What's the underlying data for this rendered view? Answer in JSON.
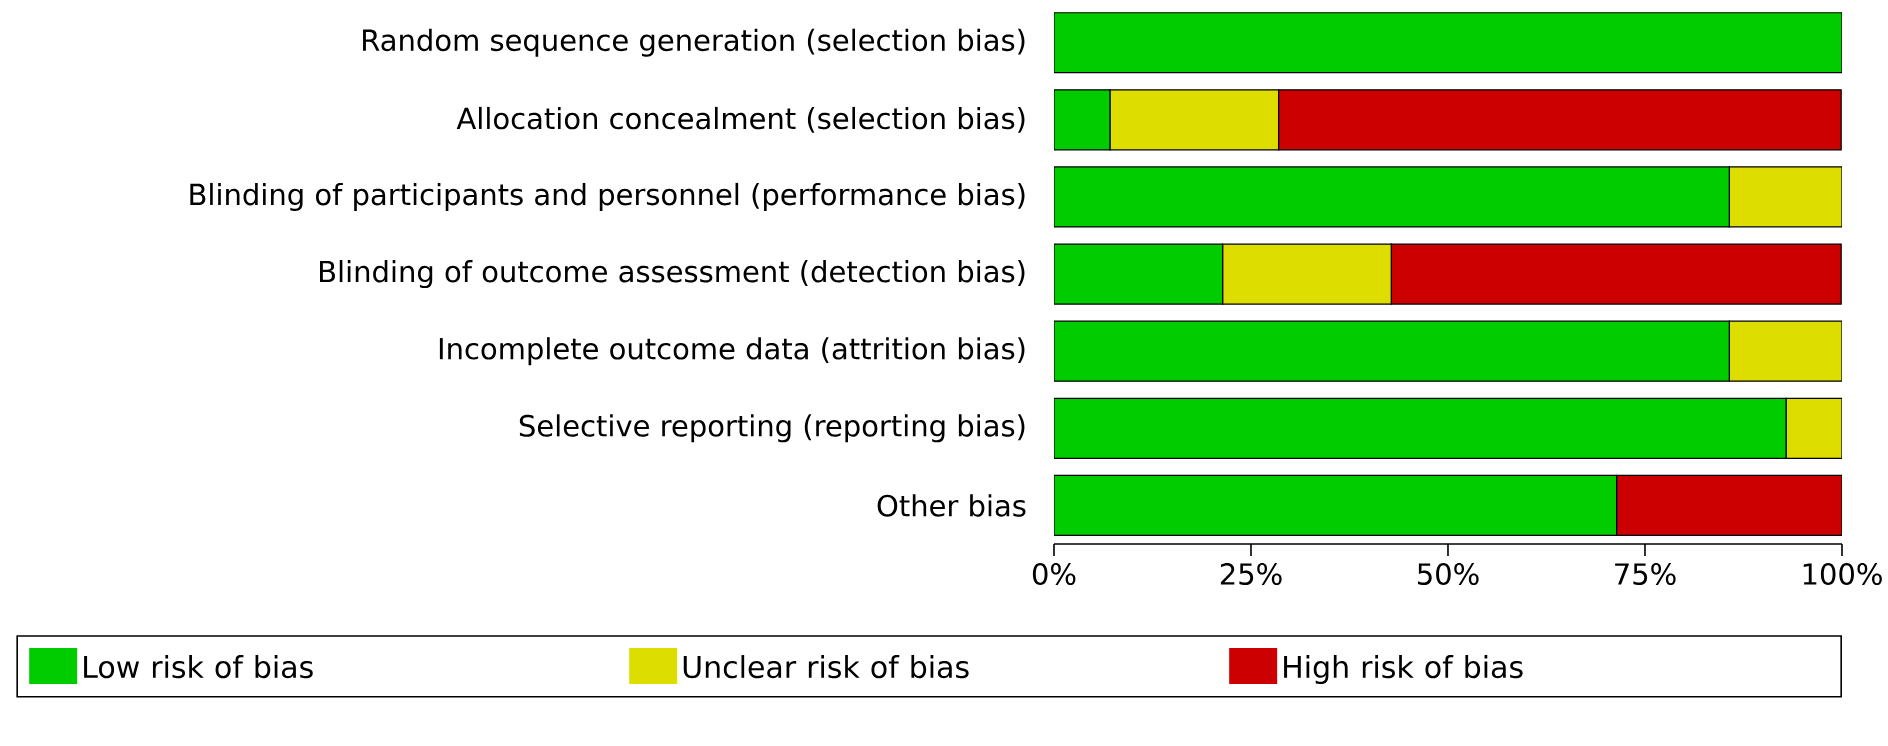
{
  "chart_data": {
    "type": "bar",
    "orientation": "horizontal",
    "stacked": true,
    "categories": [
      "Random sequence generation (selection bias)",
      "Allocation concealment (selection bias)",
      "Blinding of participants and personnel (performance bias)",
      "Blinding of outcome assessment (detection bias)",
      "Incomplete outcome data (attrition bias)",
      "Selective reporting (reporting bias)",
      "Other bias"
    ],
    "series": [
      {
        "name": "Low risk of bias",
        "color": "#00cc00",
        "values": [
          100,
          7.1,
          85.7,
          21.4,
          85.7,
          92.9,
          71.4
        ]
      },
      {
        "name": "Unclear risk of bias",
        "color": "#dddd00",
        "values": [
          0,
          21.4,
          14.3,
          21.4,
          14.3,
          7.1,
          0
        ]
      },
      {
        "name": "High risk of bias",
        "color": "#cc0000",
        "values": [
          0,
          71.4,
          0,
          57.1,
          0,
          0,
          28.6
        ]
      }
    ],
    "xlim": [
      0,
      100
    ],
    "xticks": [
      {
        "value": 0,
        "label": "0%"
      },
      {
        "value": 25,
        "label": "25%"
      },
      {
        "value": 50,
        "label": "50%"
      },
      {
        "value": 75,
        "label": "75%"
      },
      {
        "value": 100,
        "label": "100%"
      }
    ],
    "legend": "bottom",
    "grid": false
  }
}
